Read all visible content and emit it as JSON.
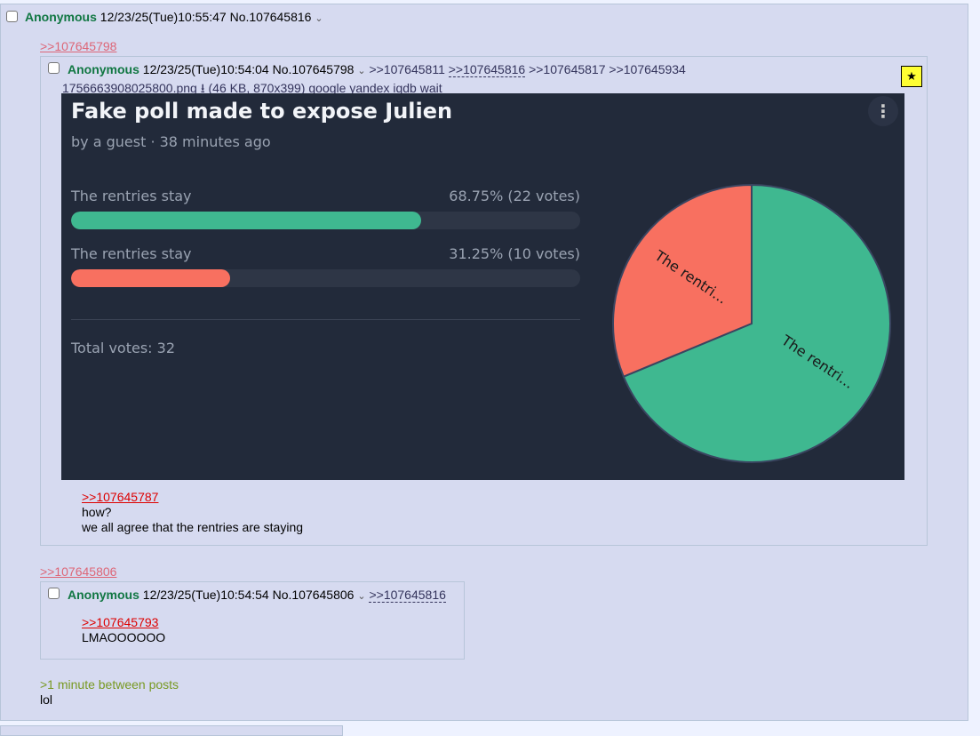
{
  "main_post": {
    "name": "Anonymous",
    "datetime": "12/23/25(Tue)10:55:47",
    "no": "No.107645816",
    "caret": "⌄",
    "greentext": ">1 minute between posts",
    "text": "lol"
  },
  "quote1": {
    "label": ">>107645798"
  },
  "post1": {
    "name": "Anonymous",
    "datetime": "12/23/25(Tue)10:54:04",
    "no": "No.107645798",
    "caret": "⌄",
    "backlinks": [
      ">>107645811",
      ">>107645816",
      ">>107645817",
      ">>107645934"
    ],
    "file": {
      "name": "1756663908025800.png",
      "info": "(46 KB, 870x399)",
      "links": [
        "google",
        "yandex",
        "iqdb",
        "wait"
      ]
    },
    "star": "★",
    "quote": ">>107645787",
    "lines": [
      "how?",
      "we all agree that the rentries are staying"
    ]
  },
  "poll": {
    "title": "Fake poll made to expose Julien",
    "subtitle": "by a guest · 38 minutes ago",
    "menu": "⋮",
    "options": [
      {
        "label": "The rentries stay",
        "result": "68.75% (22 votes)",
        "percent": 68.75,
        "color": "#3fb890",
        "pie_label": "The rentri..."
      },
      {
        "label": "The rentries stay",
        "result": "31.25% (10 votes)",
        "percent": 31.25,
        "color": "#f87060",
        "pie_label": "The rentri..."
      }
    ],
    "total": "Total votes: 32"
  },
  "quote2": {
    "label": ">>107645806"
  },
  "post2": {
    "name": "Anonymous",
    "datetime": "12/23/25(Tue)10:54:54",
    "no": "No.107645806",
    "caret": "⌄",
    "backlink": ">>107645816",
    "quote": ">>107645793",
    "text": "LMAOOOOOO"
  }
}
